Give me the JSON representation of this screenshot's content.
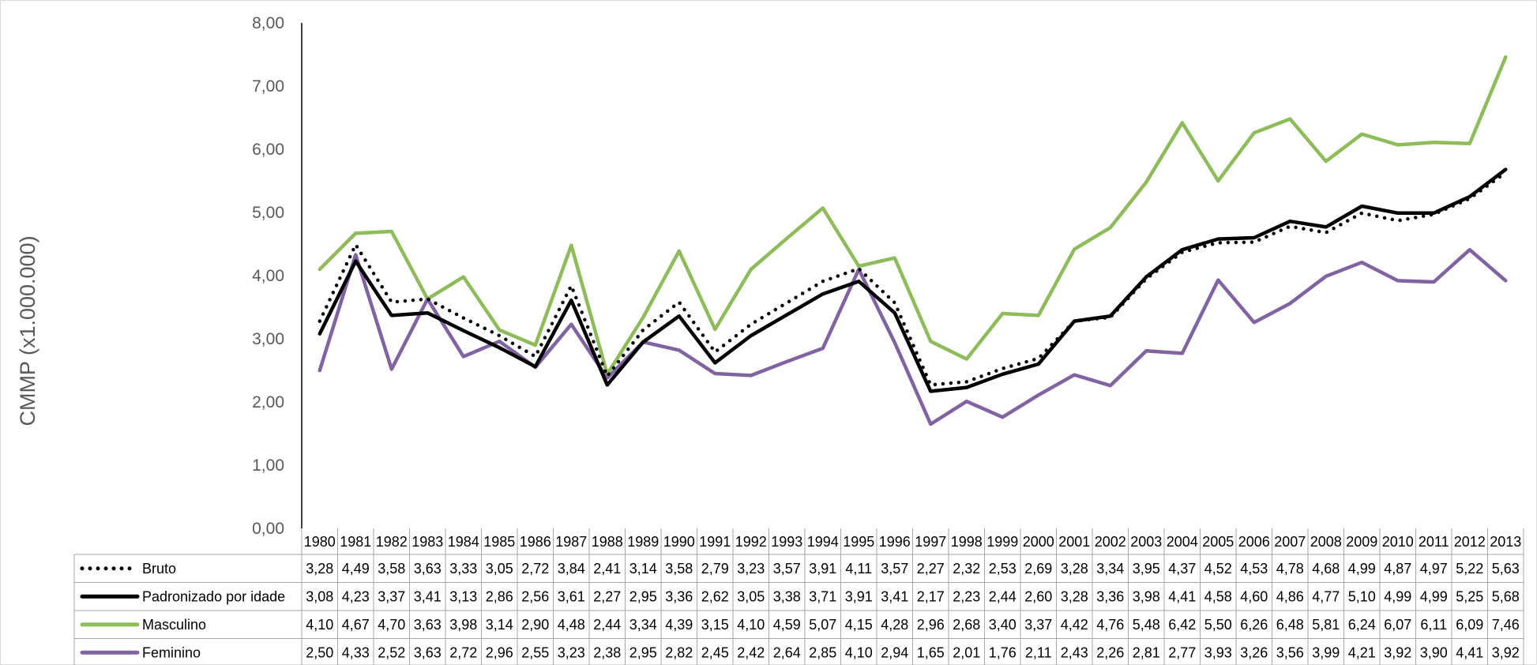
{
  "chart_data": {
    "type": "line",
    "ylabel": "CMMP (x1.000.000)",
    "ylim": [
      0,
      8
    ],
    "yticks": [
      "0,00",
      "1,00",
      "2,00",
      "3,00",
      "4,00",
      "5,00",
      "6,00",
      "7,00",
      "8,00"
    ],
    "categories": [
      "1980",
      "1981",
      "1982",
      "1983",
      "1984",
      "1985",
      "1986",
      "1987",
      "1988",
      "1989",
      "1990",
      "1991",
      "1992",
      "1993",
      "1994",
      "1995",
      "1996",
      "1997",
      "1998",
      "1999",
      "2000",
      "2001",
      "2002",
      "2003",
      "2004",
      "2005",
      "2006",
      "2007",
      "2008",
      "2009",
      "2010",
      "2011",
      "2012",
      "2013"
    ],
    "legend_placement": "data table below plot",
    "series": [
      {
        "name": "Bruto",
        "color": "#000000",
        "style": "dotted",
        "labels": [
          "3,28",
          "4,49",
          "3,58",
          "3,63",
          "3,33",
          "3,05",
          "2,72",
          "3,84",
          "2,41",
          "3,14",
          "3,58",
          "2,79",
          "3,23",
          "3,57",
          "3,91",
          "4,11",
          "3,57",
          "2,27",
          "2,32",
          "2,53",
          "2,69",
          "3,28",
          "3,34",
          "3,95",
          "4,37",
          "4,52",
          "4,53",
          "4,78",
          "4,68",
          "4,99",
          "4,87",
          "4,97",
          "5,22",
          "5,63"
        ],
        "values": [
          3.28,
          4.49,
          3.58,
          3.63,
          3.33,
          3.05,
          2.72,
          3.84,
          2.41,
          3.14,
          3.58,
          2.79,
          3.23,
          3.57,
          3.91,
          4.11,
          3.57,
          2.27,
          2.32,
          2.53,
          2.69,
          3.28,
          3.34,
          3.95,
          4.37,
          4.52,
          4.53,
          4.78,
          4.68,
          4.99,
          4.87,
          4.97,
          5.22,
          5.63
        ]
      },
      {
        "name": "Padronizado por idade",
        "color": "#000000",
        "style": "solid",
        "labels": [
          "3,08",
          "4,23",
          "3,37",
          "3,41",
          "3,13",
          "2,86",
          "2,56",
          "3,61",
          "2,27",
          "2,95",
          "3,36",
          "2,62",
          "3,05",
          "3,38",
          "3,71",
          "3,91",
          "3,41",
          "2,17",
          "2,23",
          "2,44",
          "2,60",
          "3,28",
          "3,36",
          "3,98",
          "4,41",
          "4,58",
          "4,60",
          "4,86",
          "4,77",
          "5,10",
          "4,99",
          "4,99",
          "5,25",
          "5,68"
        ],
        "values": [
          3.08,
          4.23,
          3.37,
          3.41,
          3.13,
          2.86,
          2.56,
          3.61,
          2.27,
          2.95,
          3.36,
          2.62,
          3.05,
          3.38,
          3.71,
          3.91,
          3.41,
          2.17,
          2.23,
          2.44,
          2.6,
          3.28,
          3.36,
          3.98,
          4.41,
          4.58,
          4.6,
          4.86,
          4.77,
          5.1,
          4.99,
          4.99,
          5.25,
          5.68
        ]
      },
      {
        "name": "Masculino",
        "color": "#8fbc5a",
        "style": "solid",
        "labels": [
          "4,10",
          "4,67",
          "4,70",
          "3,63",
          "3,98",
          "3,14",
          "2,90",
          "4,48",
          "2,44",
          "3,34",
          "4,39",
          "3,15",
          "4,10",
          "4,59",
          "5,07",
          "4,15",
          "4,28",
          "2,96",
          "2,68",
          "3,40",
          "3,37",
          "4,42",
          "4,76",
          "5,48",
          "6,42",
          "5,50",
          "6,26",
          "6,48",
          "5,81",
          "6,24",
          "6,07",
          "6,11",
          "6,09",
          "7,46"
        ],
        "values": [
          4.1,
          4.67,
          4.7,
          3.63,
          3.98,
          3.14,
          2.9,
          4.48,
          2.44,
          3.34,
          4.39,
          3.15,
          4.1,
          4.59,
          5.07,
          4.15,
          4.28,
          2.96,
          2.68,
          3.4,
          3.37,
          4.42,
          4.76,
          5.48,
          6.42,
          5.5,
          6.26,
          6.48,
          5.81,
          6.24,
          6.07,
          6.11,
          6.09,
          7.46
        ]
      },
      {
        "name": "Feminino",
        "color": "#8064a2",
        "style": "solid",
        "labels": [
          "2,50",
          "4,33",
          "2,52",
          "3,63",
          "2,72",
          "2,96",
          "2,55",
          "3,23",
          "2,38",
          "2,95",
          "2,82",
          "2,45",
          "2,42",
          "2,64",
          "2,85",
          "4,10",
          "2,94",
          "1,65",
          "2,01",
          "1,76",
          "2,11",
          "2,43",
          "2,26",
          "2,81",
          "2,77",
          "3,93",
          "3,26",
          "3,56",
          "3,99",
          "4,21",
          "3,92",
          "3,90",
          "4,41",
          "3,92"
        ],
        "values": [
          2.5,
          4.33,
          2.52,
          3.63,
          2.72,
          2.96,
          2.55,
          3.23,
          2.38,
          2.95,
          2.82,
          2.45,
          2.42,
          2.64,
          2.85,
          4.1,
          2.94,
          1.65,
          2.01,
          1.76,
          2.11,
          2.43,
          2.26,
          2.81,
          2.77,
          3.93,
          3.26,
          3.56,
          3.99,
          4.21,
          3.92,
          3.9,
          4.41,
          3.92
        ]
      }
    ]
  }
}
